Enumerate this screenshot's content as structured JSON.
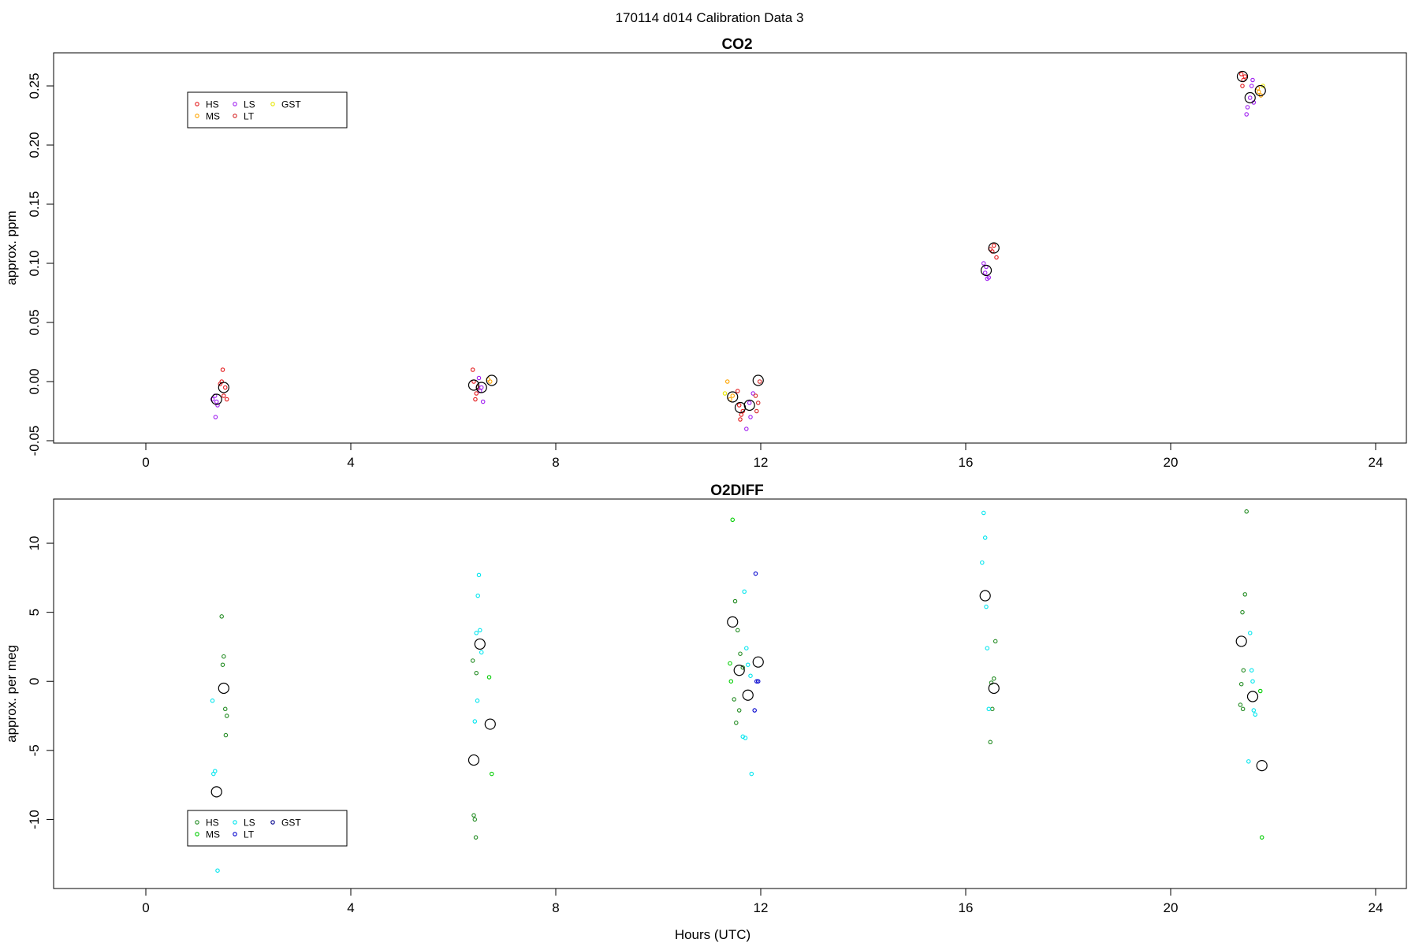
{
  "figure_title": "170114   d014   Calibration Data 3",
  "xlabel": "Hours (UTC)",
  "chart_data": [
    {
      "type": "scatter",
      "title": "CO2",
      "xlabel": "",
      "ylabel": "approx. ppm",
      "xlim": [
        -1.8,
        24.6
      ],
      "ylim": [
        -0.052,
        0.278
      ],
      "xticks": [
        0,
        4,
        8,
        12,
        16,
        20,
        24
      ],
      "yticks": [
        -0.05,
        0.0,
        0.05,
        0.1,
        0.15,
        0.2,
        0.25
      ],
      "ytick_labels": [
        "-0.05",
        "0.00",
        "0.05",
        "0.10",
        "0.15",
        "0.20",
        "0.25"
      ],
      "grid": false,
      "legend_position": "top-left",
      "legend": [
        "HS",
        "MS",
        "LS",
        "LT",
        "GST"
      ],
      "series": [
        {
          "name": "HS",
          "color": "#e41a1c",
          "points": [
            [
              1.5,
              0.01
            ],
            [
              1.48,
              0.0
            ],
            [
              1.55,
              -0.005
            ],
            [
              1.52,
              -0.012
            ],
            [
              1.58,
              -0.015
            ],
            [
              1.45,
              -0.002
            ],
            [
              6.38,
              0.01
            ],
            [
              6.4,
              0.0
            ],
            [
              6.45,
              -0.01
            ],
            [
              6.43,
              -0.015
            ],
            [
              6.48,
              -0.005
            ],
            [
              11.55,
              -0.008
            ],
            [
              11.58,
              -0.02
            ],
            [
              11.62,
              -0.028
            ],
            [
              11.6,
              -0.032
            ],
            [
              11.65,
              -0.025
            ],
            [
              16.52,
              0.11
            ],
            [
              16.55,
              0.115
            ],
            [
              16.6,
              0.105
            ],
            [
              16.48,
              0.112
            ],
            [
              21.38,
              0.26
            ],
            [
              21.42,
              0.255
            ],
            [
              21.4,
              0.25
            ],
            [
              21.45,
              0.258
            ]
          ]
        },
        {
          "name": "MS",
          "color": "#ffa500",
          "points": [
            [
              11.35,
              0.0
            ],
            [
              11.4,
              -0.015
            ],
            [
              11.45,
              -0.012
            ],
            [
              6.72,
              0.0
            ],
            [
              6.68,
              0.002
            ],
            [
              21.72,
              0.245
            ],
            [
              21.76,
              0.242
            ],
            [
              21.7,
              0.248
            ]
          ]
        },
        {
          "name": "LS",
          "color": "#a020f0",
          "points": [
            [
              1.35,
              -0.012
            ],
            [
              1.38,
              -0.017
            ],
            [
              1.3,
              -0.015
            ],
            [
              1.4,
              -0.02
            ],
            [
              1.36,
              -0.03
            ],
            [
              6.5,
              0.003
            ],
            [
              6.55,
              -0.005
            ],
            [
              6.58,
              -0.017
            ],
            [
              6.52,
              -0.008
            ],
            [
              11.78,
              -0.018
            ],
            [
              11.8,
              -0.03
            ],
            [
              11.72,
              -0.04
            ],
            [
              11.85,
              -0.01
            ],
            [
              16.35,
              0.1
            ],
            [
              16.4,
              0.097
            ],
            [
              16.42,
              0.087
            ],
            [
              16.45,
              0.088
            ],
            [
              16.38,
              0.092
            ],
            [
              21.5,
              0.232
            ],
            [
              21.55,
              0.24
            ],
            [
              21.58,
              0.25
            ],
            [
              21.6,
              0.255
            ],
            [
              21.48,
              0.226
            ],
            [
              21.62,
              0.236
            ]
          ]
        },
        {
          "name": "LT",
          "color": "#d62728",
          "points": [
            [
              11.9,
              -0.012
            ],
            [
              11.95,
              -0.018
            ],
            [
              11.98,
              0.0
            ],
            [
              11.92,
              -0.025
            ]
          ]
        },
        {
          "name": "GST",
          "color": "#e6e600",
          "points": [
            [
              11.3,
              -0.01
            ],
            [
              21.8,
              0.25
            ]
          ]
        }
      ],
      "means": [
        [
          1.38,
          -0.015
        ],
        [
          1.52,
          -0.005
        ],
        [
          6.4,
          -0.003
        ],
        [
          6.55,
          -0.005
        ],
        [
          6.75,
          0.001
        ],
        [
          11.45,
          -0.013
        ],
        [
          11.6,
          -0.022
        ],
        [
          11.78,
          -0.02
        ],
        [
          11.95,
          0.001
        ],
        [
          16.4,
          0.094
        ],
        [
          16.55,
          0.113
        ],
        [
          21.4,
          0.258
        ],
        [
          21.55,
          0.24
        ],
        [
          21.75,
          0.246
        ]
      ]
    },
    {
      "type": "scatter",
      "title": "O2DIFF",
      "xlabel": "Hours (UTC)",
      "ylabel": "approx. per meg",
      "xlim": [
        -1.8,
        24.6
      ],
      "ylim": [
        -15,
        13.2
      ],
      "xticks": [
        0,
        4,
        8,
        12,
        16,
        20,
        24
      ],
      "yticks": [
        -10,
        -5,
        0,
        5,
        10
      ],
      "ytick_labels": [
        "-10",
        "-5",
        "0",
        "5",
        "10"
      ],
      "grid": false,
      "legend_position": "bottom-left",
      "legend": [
        "HS",
        "MS",
        "LS",
        "LT",
        "GST"
      ],
      "series": [
        {
          "name": "HS",
          "color": "#228b22",
          "points": [
            [
              1.48,
              4.7
            ],
            [
              1.52,
              1.8
            ],
            [
              1.5,
              1.2
            ],
            [
              1.55,
              -2.0
            ],
            [
              1.58,
              -2.5
            ],
            [
              1.56,
              -3.9
            ],
            [
              6.38,
              1.5
            ],
            [
              6.45,
              0.6
            ],
            [
              6.4,
              -9.7
            ],
            [
              6.42,
              -10.0
            ],
            [
              6.44,
              -11.3
            ],
            [
              11.5,
              5.8
            ],
            [
              11.55,
              3.7
            ],
            [
              11.6,
              2.0
            ],
            [
              11.65,
              1.0
            ],
            [
              11.48,
              -1.3
            ],
            [
              11.52,
              -3.0
            ],
            [
              11.58,
              -2.1
            ],
            [
              16.5,
              -0.1
            ],
            [
              16.55,
              0.2
            ],
            [
              16.52,
              -2.0
            ],
            [
              16.48,
              -4.4
            ],
            [
              16.58,
              2.9
            ],
            [
              21.4,
              5.0
            ],
            [
              21.45,
              6.3
            ],
            [
              21.42,
              0.8
            ],
            [
              21.38,
              -0.2
            ],
            [
              21.36,
              -1.7
            ],
            [
              21.41,
              -2.0
            ],
            [
              21.48,
              12.3
            ]
          ]
        },
        {
          "name": "MS",
          "color": "#00cd00",
          "points": [
            [
              6.7,
              0.3
            ],
            [
              6.75,
              -6.7
            ],
            [
              11.45,
              11.7
            ],
            [
              11.4,
              1.3
            ],
            [
              11.42,
              0.0
            ],
            [
              21.75,
              -0.7
            ],
            [
              21.78,
              -11.3
            ]
          ]
        },
        {
          "name": "LS",
          "color": "#00e5ee",
          "points": [
            [
              1.3,
              -1.4
            ],
            [
              1.35,
              -6.5
            ],
            [
              1.32,
              -6.7
            ],
            [
              1.38,
              -9.8
            ],
            [
              1.34,
              -9.9
            ],
            [
              1.4,
              -13.7
            ],
            [
              6.5,
              7.7
            ],
            [
              6.48,
              6.2
            ],
            [
              6.52,
              3.7
            ],
            [
              6.45,
              3.5
            ],
            [
              6.55,
              2.1
            ],
            [
              6.47,
              -1.4
            ],
            [
              6.42,
              -2.9
            ],
            [
              11.68,
              6.5
            ],
            [
              11.72,
              2.4
            ],
            [
              11.75,
              1.2
            ],
            [
              11.8,
              0.4
            ],
            [
              11.65,
              -4.0
            ],
            [
              11.7,
              -4.1
            ],
            [
              11.82,
              -6.7
            ],
            [
              16.35,
              12.2
            ],
            [
              16.38,
              10.4
            ],
            [
              16.32,
              8.6
            ],
            [
              16.4,
              5.4
            ],
            [
              16.42,
              2.4
            ],
            [
              16.45,
              -2.0
            ],
            [
              21.55,
              3.5
            ],
            [
              21.58,
              0.8
            ],
            [
              21.6,
              0.0
            ],
            [
              21.62,
              -2.1
            ],
            [
              21.65,
              -2.4
            ],
            [
              21.52,
              -5.8
            ]
          ]
        },
        {
          "name": "LT",
          "color": "#0000cd",
          "points": [
            [
              11.9,
              7.8
            ],
            [
              11.92,
              0.0
            ],
            [
              11.95,
              0.0
            ],
            [
              11.88,
              -2.1
            ]
          ]
        },
        {
          "name": "GST",
          "color": "#00008b",
          "points": []
        }
      ],
      "means": [
        [
          1.38,
          -8.0
        ],
        [
          1.52,
          -0.5
        ],
        [
          6.4,
          -5.7
        ],
        [
          6.52,
          2.7
        ],
        [
          6.72,
          -3.1
        ],
        [
          11.45,
          4.3
        ],
        [
          11.58,
          0.8
        ],
        [
          11.75,
          -1.0
        ],
        [
          11.95,
          1.4
        ],
        [
          16.38,
          6.2
        ],
        [
          16.55,
          -0.5
        ],
        [
          21.38,
          2.9
        ],
        [
          21.6,
          -1.1
        ],
        [
          21.78,
          -6.1
        ]
      ]
    }
  ]
}
